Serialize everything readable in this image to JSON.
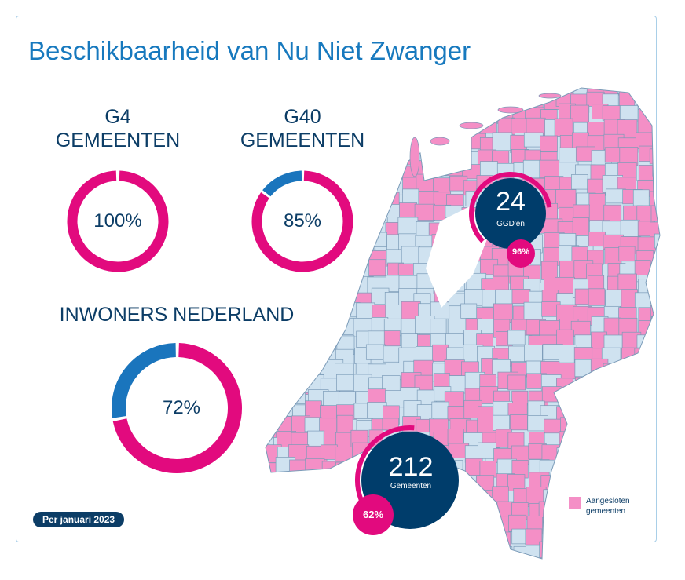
{
  "title": "Beschikbaarheid van Nu Niet Zwanger",
  "colors": {
    "pink": "#e20a7e",
    "blue": "#1a75bd",
    "navy": "#003d6b",
    "map_connected": "#f48fc6",
    "map_other": "#cfe2f0"
  },
  "chart_data": [
    {
      "type": "pie",
      "style": "donut",
      "label_line1": "G4",
      "label_line2": "GEMEENTEN",
      "center_label": "100%",
      "values": [
        100,
        0
      ]
    },
    {
      "type": "pie",
      "style": "donut",
      "label_line1": "G40",
      "label_line2": "GEMEENTEN",
      "center_label": "85%",
      "values": [
        85,
        15
      ]
    },
    {
      "type": "pie",
      "style": "donut",
      "label_line1": "INWONERS NEDERLAND",
      "center_label": "72%",
      "values": [
        72,
        28
      ]
    }
  ],
  "map": {
    "ggd": {
      "number": "24",
      "label": "GGD'en",
      "percent_label": "96%",
      "percent": 96
    },
    "gemeenten": {
      "number": "212",
      "label": "Gemeenten",
      "percent_label": "62%",
      "percent": 62
    },
    "legend": {
      "line1": "Aangesloten",
      "line2": "gemeenten"
    }
  },
  "footer_badge": "Per januari 2023"
}
